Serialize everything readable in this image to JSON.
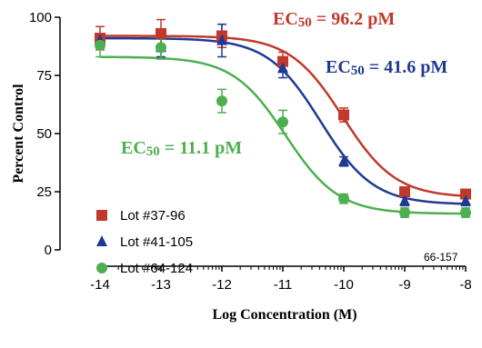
{
  "chart_data": {
    "type": "scatter",
    "xlabel": "Log Concentration (M)",
    "ylabel": "Percent Control",
    "xlim": [
      -14,
      -8
    ],
    "ylim": [
      0,
      100
    ],
    "x_ticks": [
      "-14",
      "-13",
      "-12",
      "-11",
      "-10",
      "-9",
      "-8"
    ],
    "y_ticks": [
      "0",
      "25",
      "50",
      "75",
      "100"
    ],
    "grid": false,
    "legend_position": "bottom-left",
    "series": [
      {
        "name": "Lot #37-96",
        "color": "#c0392b",
        "marker": "square",
        "x": [
          -14,
          -13,
          -12,
          -11,
          -10,
          -9,
          -8
        ],
        "y": [
          91,
          93,
          92,
          81,
          58,
          25,
          24
        ],
        "err": [
          5,
          6,
          5,
          4,
          3,
          2,
          2
        ],
        "fit": {
          "top": 92,
          "bottom": 22.5,
          "logEC50": -10.017,
          "hill": 1.0
        }
      },
      {
        "name": "Lot #41-105",
        "color": "#1f3a93",
        "marker": "triangle",
        "x": [
          -14,
          -13,
          -12,
          -11,
          -10,
          -9,
          -8
        ],
        "y": [
          90,
          87,
          90,
          78,
          38,
          21,
          21
        ],
        "err": [
          3,
          4,
          7,
          4,
          2,
          2,
          2
        ],
        "fit": {
          "top": 91,
          "bottom": 19.5,
          "logEC50": -10.381,
          "hill": 1.0
        }
      },
      {
        "name": "Lot #64-124",
        "color": "#4caf50",
        "marker": "circle",
        "x": [
          -14,
          -13,
          -12,
          -11,
          -10,
          -9,
          -8
        ],
        "y": [
          88,
          87,
          64,
          55,
          22,
          16,
          16
        ],
        "err": [
          5,
          5,
          5,
          5,
          2,
          2,
          2
        ],
        "fit": {
          "top": 83,
          "bottom": 15.5,
          "logEC50": -10.955,
          "hill": 1.0
        }
      }
    ],
    "annotations": [
      {
        "ec_prefix": "EC",
        "sub": "50",
        "value_text": " = 96.2 pM",
        "color": "#c0392b"
      },
      {
        "ec_prefix": "EC",
        "sub": "50",
        "value_text": " = 41.6 pM",
        "color": "#1f3a93"
      },
      {
        "ec_prefix": "EC",
        "sub": "50",
        "value_text": " = 11.1 pM",
        "color": "#4caf50"
      }
    ],
    "code_label": "66-157"
  }
}
